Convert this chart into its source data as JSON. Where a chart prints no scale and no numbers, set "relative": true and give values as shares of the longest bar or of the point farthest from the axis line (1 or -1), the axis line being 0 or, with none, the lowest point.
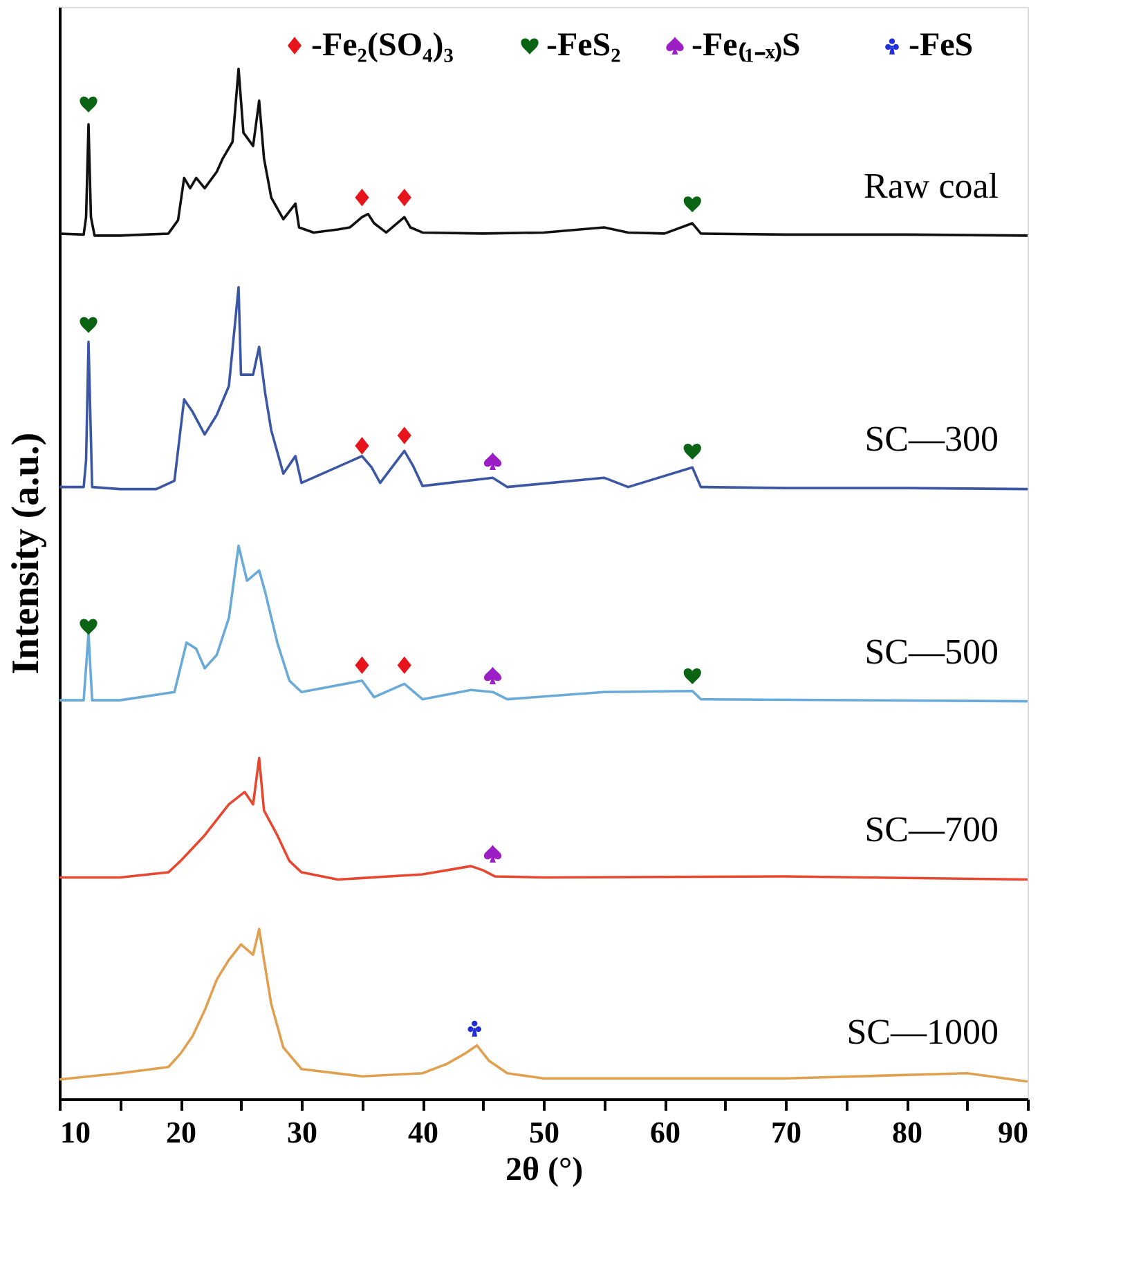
{
  "chart_data": {
    "type": "line",
    "relative": true,
    "xlabel": "2θ (°)",
    "ylabel": "Intensity (a.u.)",
    "xlim": [
      10,
      90
    ],
    "xticks": [
      10,
      {
        "value": 15,
        "label": null
      },
      20,
      {
        "value": 25,
        "label": null
      },
      30,
      {
        "value": 35,
        "label": null
      },
      40,
      {
        "value": 45,
        "label": null
      },
      50,
      {
        "value": 55,
        "label": null
      },
      60,
      {
        "value": 65,
        "label": null
      },
      70,
      {
        "value": 75,
        "label": null
      },
      80,
      {
        "value": 85,
        "label": null
      },
      90
    ],
    "legend": "top right",
    "grid": false,
    "line_style": "solid",
    "series": [
      {
        "name": "Raw coal",
        "color": "#111111",
        "x": [
          10,
          12,
          12.2,
          12.4,
          12.6,
          12.9,
          15,
          17,
          19,
          19.8,
          20.3,
          20.8,
          21.3,
          22,
          23,
          23.5,
          24.3,
          24.8,
          25.2,
          26,
          26.5,
          26.9,
          27.5,
          28.5,
          29.5,
          29.8,
          31,
          33,
          34,
          35,
          35.5,
          36,
          37,
          38.5,
          39,
          40,
          45,
          50,
          55,
          57,
          60,
          62.3,
          63,
          70,
          80,
          90
        ],
        "values": [
          0.84,
          0.839,
          0.856,
          0.946,
          0.856,
          0.838,
          0.838,
          0.839,
          0.84,
          0.853,
          0.894,
          0.884,
          0.894,
          0.884,
          0.9,
          0.913,
          0.929,
          1.0,
          0.938,
          0.925,
          0.969,
          0.913,
          0.875,
          0.854,
          0.869,
          0.846,
          0.841,
          0.844,
          0.846,
          0.856,
          0.859,
          0.85,
          0.841,
          0.856,
          0.846,
          0.841,
          0.84,
          0.841,
          0.846,
          0.841,
          0.84,
          0.85,
          0.84,
          0.839,
          0.839,
          0.838
        ]
      },
      {
        "name": "SC—300",
        "color": "#3b56a3",
        "x": [
          10,
          12,
          12.2,
          12.4,
          12.7,
          15,
          18,
          19.5,
          20.3,
          21,
          22,
          23,
          24,
          24.8,
          25,
          26,
          26.5,
          27,
          27.5,
          28.5,
          29.5,
          30,
          35,
          35.8,
          36.5,
          38.5,
          39.2,
          40,
          45.8,
          47,
          55,
          57,
          62.3,
          63,
          70,
          80,
          90
        ],
        "values": [
          0.594,
          0.594,
          0.62,
          0.735,
          0.594,
          0.592,
          0.592,
          0.6,
          0.679,
          0.667,
          0.645,
          0.664,
          0.692,
          0.788,
          0.703,
          0.703,
          0.73,
          0.685,
          0.649,
          0.607,
          0.624,
          0.598,
          0.624,
          0.613,
          0.598,
          0.629,
          0.615,
          0.595,
          0.603,
          0.594,
          0.603,
          0.594,
          0.613,
          0.594,
          0.593,
          0.593,
          0.592
        ]
      },
      {
        "name": "SC—500",
        "color": "#6aaad8",
        "x": [
          10,
          12,
          12.4,
          12.7,
          15,
          19.5,
          20.5,
          21.3,
          22,
          23,
          24,
          24.8,
          25.5,
          26.5,
          27,
          28,
          29,
          30,
          35,
          36,
          38.5,
          40,
          44,
          45.8,
          47,
          55,
          62.3,
          63,
          90
        ],
        "values": [
          0.387,
          0.387,
          0.452,
          0.387,
          0.387,
          0.395,
          0.443,
          0.437,
          0.418,
          0.431,
          0.467,
          0.537,
          0.503,
          0.513,
          0.492,
          0.443,
          0.406,
          0.395,
          0.406,
          0.39,
          0.403,
          0.388,
          0.397,
          0.395,
          0.388,
          0.395,
          0.396,
          0.388,
          0.386
        ]
      },
      {
        "name": "SC—700",
        "color": "#e8472f",
        "x": [
          10,
          15,
          19,
          20,
          22,
          24,
          25.3,
          26,
          26.5,
          26.9,
          28,
          29,
          30,
          33,
          40,
          44,
          45,
          46,
          50,
          70,
          90
        ],
        "values": [
          0.215,
          0.215,
          0.22,
          0.231,
          0.256,
          0.286,
          0.298,
          0.286,
          0.331,
          0.28,
          0.256,
          0.231,
          0.22,
          0.213,
          0.218,
          0.226,
          0.222,
          0.216,
          0.215,
          0.216,
          0.213
        ]
      },
      {
        "name": "SC—1000",
        "color": "#e0a050",
        "x": [
          10,
          15,
          19,
          20,
          21,
          22,
          23,
          24,
          25,
          26,
          26.5,
          26.9,
          27.5,
          28.5,
          30,
          35,
          40,
          42,
          43.5,
          44.5,
          45.5,
          47,
          50,
          70,
          85,
          90
        ],
        "values": [
          0.019,
          0.025,
          0.031,
          0.044,
          0.061,
          0.086,
          0.116,
          0.135,
          0.15,
          0.14,
          0.165,
          0.135,
          0.092,
          0.05,
          0.029,
          0.022,
          0.025,
          0.034,
          0.044,
          0.052,
          0.037,
          0.025,
          0.02,
          0.02,
          0.025,
          0.017
        ]
      },
      {
        "name": "-Fe₂(SO₄)₃",
        "type": "scatter",
        "marker": "diamond",
        "color": "#e8141c",
        "x": [
          35,
          38.5,
          35,
          38.5,
          35,
          38.5
        ],
        "values": [
          0.875,
          0.875,
          0.634,
          0.644,
          0.421,
          0.421
        ]
      },
      {
        "name": "-FeS₂",
        "type": "scatter",
        "color": "#0b6413",
        "x": [
          12.4,
          62.3,
          12.4,
          62.3,
          12.4,
          62.3
        ],
        "values": [
          0.966,
          0.869,
          0.752,
          0.629,
          0.459,
          0.411
        ]
      },
      {
        "name": "-Fe₍₁₋ₓ₎S",
        "type": "scatter",
        "color": "#9b1fc4",
        "x": [
          45.8,
          45.8,
          45.8
        ],
        "values": [
          0.619,
          0.411,
          0.238
        ]
      },
      {
        "name": "-FeS",
        "type": "scatter",
        "color": "#1f2ed6",
        "x": [
          44.3
        ],
        "values": [
          0.069
        ]
      }
    ]
  }
}
